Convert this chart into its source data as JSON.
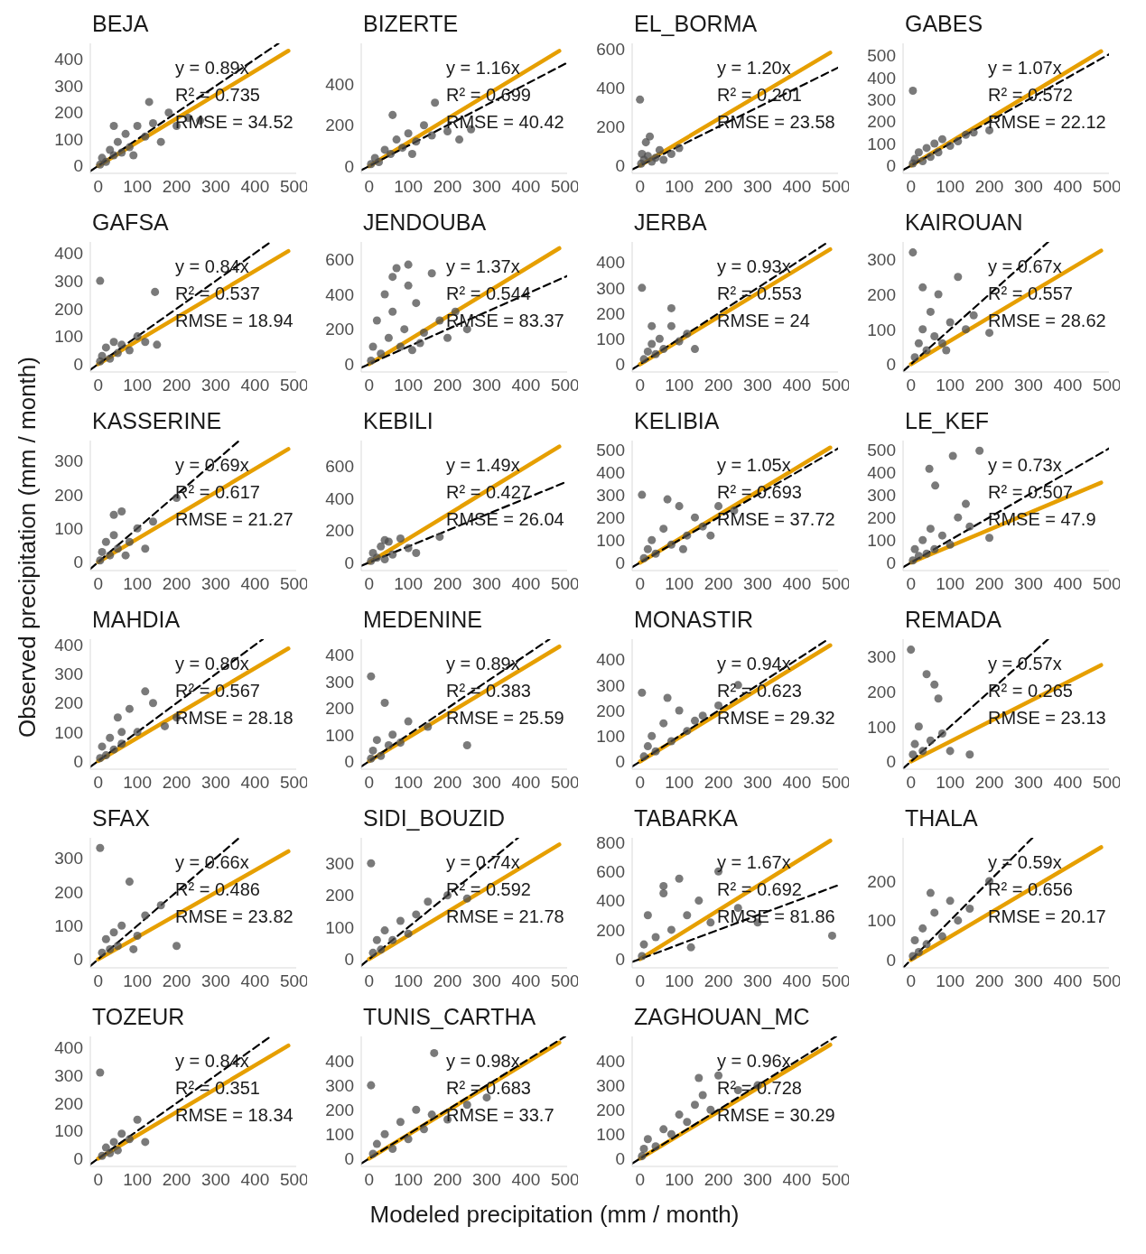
{
  "chart_data": [
    {
      "type": "scatter",
      "title": "BEJA",
      "xlim": [
        -20,
        505
      ],
      "ylim": [
        -28,
        460
      ],
      "xticks": [
        0,
        100,
        200,
        300,
        400,
        500
      ],
      "yticks": [
        0,
        100,
        200,
        300,
        400
      ],
      "annotations": [
        "y = 0.89x",
        "R² = 0.735",
        "RMSE = 34.52"
      ],
      "series": [
        {
          "type": "scatter",
          "marker": "circle",
          "color": "#4d4d4d",
          "x": [
            5,
            10,
            20,
            30,
            40,
            50,
            60,
            70,
            80,
            100,
            120,
            140,
            160,
            180,
            200,
            230,
            260,
            40,
            90,
            130
          ],
          "values": [
            5,
            30,
            15,
            60,
            40,
            90,
            50,
            120,
            70,
            150,
            110,
            160,
            90,
            200,
            150,
            180,
            170,
            150,
            40,
            240
          ]
        },
        {
          "type": "line",
          "color": "#e69f00",
          "x": [
            0,
            485
          ],
          "values": [
            0,
            432
          ]
        },
        {
          "type": "line",
          "line_style": "dashed",
          "color": "#000000",
          "x": [
            -20,
            460
          ],
          "values": [
            -20,
            460
          ]
        }
      ]
    },
    {
      "type": "scatter",
      "title": "BIZERTE",
      "xlim": [
        -20,
        505
      ],
      "ylim": [
        -35,
        600
      ],
      "xticks": [
        0,
        100,
        200,
        300,
        400,
        500
      ],
      "yticks": [
        0,
        200,
        400
      ],
      "annotations": [
        "y = 1.16x",
        "R² = 0.699",
        "RMSE = 40.42"
      ],
      "series": [
        {
          "type": "scatter",
          "marker": "circle",
          "color": "#4d4d4d",
          "x": [
            5,
            15,
            25,
            40,
            55,
            70,
            85,
            100,
            120,
            140,
            160,
            168,
            200,
            230,
            260,
            60,
            110
          ],
          "values": [
            10,
            40,
            20,
            80,
            60,
            130,
            90,
            160,
            120,
            200,
            150,
            310,
            170,
            130,
            180,
            250,
            60
          ]
        },
        {
          "type": "line",
          "color": "#e69f00",
          "x": [
            0,
            485
          ],
          "values": [
            0,
            563
          ]
        },
        {
          "type": "line",
          "line_style": "dashed",
          "color": "#000000",
          "x": [
            -20,
            505
          ],
          "values": [
            -20,
            505
          ]
        }
      ]
    },
    {
      "type": "scatter",
      "title": "EL_BORMA",
      "xlim": [
        -20,
        505
      ],
      "ylim": [
        -40,
        630
      ],
      "xticks": [
        0,
        100,
        200,
        300,
        400,
        500
      ],
      "yticks": [
        0,
        200,
        400,
        600
      ],
      "annotations": [
        "y = 1.20x",
        "R² = 0.201",
        "RMSE = 23.58"
      ],
      "series": [
        {
          "type": "scatter",
          "marker": "circle",
          "color": "#4d4d4d",
          "x": [
            0,
            3,
            5,
            10,
            15,
            20,
            25,
            30,
            40,
            50,
            60,
            80,
            100
          ],
          "values": [
            340,
            10,
            60,
            30,
            120,
            50,
            150,
            20,
            40,
            80,
            30,
            60,
            90
          ]
        },
        {
          "type": "line",
          "color": "#e69f00",
          "x": [
            0,
            485
          ],
          "values": [
            0,
            582
          ]
        },
        {
          "type": "line",
          "line_style": "dashed",
          "color": "#000000",
          "x": [
            -20,
            505
          ],
          "values": [
            -20,
            505
          ]
        }
      ]
    },
    {
      "type": "scatter",
      "title": "GABES",
      "xlim": [
        -20,
        505
      ],
      "ylim": [
        -35,
        555
      ],
      "xticks": [
        0,
        100,
        200,
        300,
        400,
        500
      ],
      "yticks": [
        0,
        100,
        200,
        300,
        400,
        500
      ],
      "annotations": [
        "y = 1.07x",
        "R² = 0.572",
        "RMSE = 22.12"
      ],
      "series": [
        {
          "type": "scatter",
          "marker": "circle",
          "color": "#4d4d4d",
          "x": [
            5,
            5,
            10,
            20,
            30,
            40,
            50,
            60,
            70,
            80,
            100,
            120,
            140,
            160,
            200
          ],
          "values": [
            340,
            10,
            30,
            60,
            20,
            80,
            40,
            100,
            60,
            120,
            90,
            110,
            140,
            150,
            160
          ]
        },
        {
          "type": "line",
          "color": "#e69f00",
          "x": [
            0,
            485
          ],
          "values": [
            0,
            519
          ]
        },
        {
          "type": "line",
          "line_style": "dashed",
          "color": "#000000",
          "x": [
            -20,
            505
          ],
          "values": [
            -20,
            505
          ]
        }
      ]
    },
    {
      "type": "scatter",
      "title": "GAFSA",
      "xlim": [
        -20,
        505
      ],
      "ylim": [
        -28,
        440
      ],
      "xticks": [
        0,
        100,
        200,
        300,
        400,
        500
      ],
      "yticks": [
        0,
        100,
        200,
        300,
        400
      ],
      "annotations": [
        "y = 0.84x",
        "R² = 0.537",
        "RMSE = 18.94"
      ],
      "series": [
        {
          "type": "scatter",
          "marker": "circle",
          "color": "#4d4d4d",
          "x": [
            5,
            5,
            10,
            20,
            30,
            40,
            50,
            60,
            80,
            100,
            120,
            150,
            145
          ],
          "values": [
            300,
            10,
            30,
            60,
            20,
            80,
            40,
            70,
            50,
            100,
            80,
            70,
            260
          ]
        },
        {
          "type": "line",
          "color": "#e69f00",
          "x": [
            0,
            485
          ],
          "values": [
            0,
            407
          ]
        },
        {
          "type": "line",
          "line_style": "dashed",
          "color": "#000000",
          "x": [
            -20,
            440
          ],
          "values": [
            -20,
            440
          ]
        }
      ]
    },
    {
      "type": "scatter",
      "title": "JENDOUBA",
      "xlim": [
        -20,
        505
      ],
      "ylim": [
        -45,
        700
      ],
      "xticks": [
        0,
        100,
        200,
        300,
        400,
        500
      ],
      "yticks": [
        0,
        200,
        400,
        600
      ],
      "annotations": [
        "y = 1.37x",
        "R² = 0.544",
        "RMSE = 83.37"
      ],
      "series": [
        {
          "type": "scatter",
          "marker": "circle",
          "color": "#4d4d4d",
          "x": [
            5,
            10,
            20,
            30,
            40,
            50,
            60,
            70,
            80,
            90,
            100,
            110,
            120,
            140,
            160,
            180,
            200,
            220,
            250,
            60,
            100,
            130
          ],
          "values": [
            20,
            100,
            250,
            60,
            400,
            150,
            300,
            550,
            100,
            200,
            450,
            80,
            350,
            180,
            520,
            250,
            150,
            300,
            200,
            500,
            570,
            120
          ]
        },
        {
          "type": "line",
          "color": "#e69f00",
          "x": [
            0,
            485
          ],
          "values": [
            0,
            664
          ]
        },
        {
          "type": "line",
          "line_style": "dashed",
          "color": "#000000",
          "x": [
            -20,
            505
          ],
          "values": [
            -20,
            505
          ]
        }
      ]
    },
    {
      "type": "scatter",
      "title": "JERBA",
      "xlim": [
        -20,
        505
      ],
      "ylim": [
        -30,
        480
      ],
      "xticks": [
        0,
        100,
        200,
        300,
        400,
        500
      ],
      "yticks": [
        0,
        100,
        200,
        300,
        400
      ],
      "annotations": [
        "y = 0.93x",
        "R² = 0.553",
        "RMSE = 24"
      ],
      "series": [
        {
          "type": "scatter",
          "marker": "circle",
          "color": "#4d4d4d",
          "x": [
            5,
            10,
            20,
            30,
            40,
            50,
            60,
            80,
            100,
            120,
            140,
            80,
            30
          ],
          "values": [
            300,
            20,
            50,
            80,
            40,
            100,
            60,
            150,
            90,
            120,
            60,
            220,
            150
          ]
        },
        {
          "type": "line",
          "color": "#e69f00",
          "x": [
            0,
            485
          ],
          "values": [
            0,
            451
          ]
        },
        {
          "type": "line",
          "line_style": "dashed",
          "color": "#000000",
          "x": [
            -20,
            480
          ],
          "values": [
            -20,
            480
          ]
        }
      ]
    },
    {
      "type": "scatter",
      "title": "KAIROUAN",
      "xlim": [
        -20,
        505
      ],
      "ylim": [
        -22,
        350
      ],
      "xticks": [
        0,
        100,
        200,
        300,
        400,
        500
      ],
      "yticks": [
        0,
        100,
        200,
        300
      ],
      "annotations": [
        "y = 0.67x",
        "R² = 0.557",
        "RMSE = 28.62"
      ],
      "series": [
        {
          "type": "scatter",
          "marker": "circle",
          "color": "#4d4d4d",
          "x": [
            5,
            10,
            20,
            30,
            40,
            50,
            60,
            70,
            80,
            100,
            120,
            140,
            160,
            200,
            30,
            90
          ],
          "values": [
            320,
            20,
            60,
            100,
            40,
            150,
            80,
            200,
            60,
            120,
            250,
            100,
            140,
            90,
            220,
            40
          ]
        },
        {
          "type": "line",
          "color": "#e69f00",
          "x": [
            0,
            485
          ],
          "values": [
            0,
            325
          ]
        },
        {
          "type": "line",
          "line_style": "dashed",
          "color": "#000000",
          "x": [
            -20,
            350
          ],
          "values": [
            -20,
            350
          ]
        }
      ]
    },
    {
      "type": "scatter",
      "title": "KASSERINE",
      "ylabel": "Observed precipitation (mm / month)",
      "xlim": [
        -20,
        505
      ],
      "ylim": [
        -25,
        360
      ],
      "xticks": [
        0,
        100,
        200,
        300,
        400,
        500
      ],
      "yticks": [
        0,
        100,
        200,
        300
      ],
      "annotations": [
        "y = 0.69x",
        "R² = 0.617",
        "RMSE = 21.27"
      ],
      "series": [
        {
          "type": "scatter",
          "marker": "circle",
          "color": "#4d4d4d",
          "x": [
            5,
            10,
            20,
            30,
            40,
            50,
            60,
            80,
            100,
            120,
            140,
            200,
            40,
            70
          ],
          "values": [
            5,
            30,
            60,
            20,
            80,
            40,
            150,
            60,
            100,
            40,
            120,
            190,
            140,
            20
          ]
        },
        {
          "type": "line",
          "color": "#e69f00",
          "x": [
            0,
            485
          ],
          "values": [
            0,
            335
          ]
        },
        {
          "type": "line",
          "line_style": "dashed",
          "color": "#000000",
          "x": [
            -20,
            360
          ],
          "values": [
            -20,
            360
          ]
        }
      ]
    },
    {
      "type": "scatter",
      "title": "KEBILI",
      "xlim": [
        -20,
        505
      ],
      "ylim": [
        -50,
        760
      ],
      "xticks": [
        0,
        100,
        200,
        300,
        400,
        500
      ],
      "yticks": [
        0,
        200,
        400,
        600
      ],
      "annotations": [
        "y = 1.49x",
        "R² = 0.427",
        "RMSE = 26.04"
      ],
      "series": [
        {
          "type": "scatter",
          "marker": "circle",
          "color": "#4d4d4d",
          "x": [
            5,
            10,
            20,
            30,
            40,
            50,
            60,
            80,
            100,
            120,
            180,
            40
          ],
          "values": [
            10,
            60,
            30,
            100,
            20,
            130,
            50,
            150,
            90,
            60,
            160,
            140
          ]
        },
        {
          "type": "line",
          "color": "#e69f00",
          "x": [
            0,
            485
          ],
          "values": [
            0,
            723
          ]
        },
        {
          "type": "line",
          "line_style": "dashed",
          "color": "#000000",
          "x": [
            -20,
            505
          ],
          "values": [
            -20,
            505
          ]
        }
      ]
    },
    {
      "type": "scatter",
      "title": "KELIBIA",
      "xlim": [
        -20,
        505
      ],
      "ylim": [
        -35,
        540
      ],
      "xticks": [
        0,
        100,
        200,
        300,
        400,
        500
      ],
      "yticks": [
        0,
        100,
        200,
        300,
        400,
        500
      ],
      "annotations": [
        "y = 1.05x",
        "R² = 0.693",
        "RMSE = 37.72"
      ],
      "series": [
        {
          "type": "scatter",
          "marker": "circle",
          "color": "#4d4d4d",
          "x": [
            5,
            10,
            20,
            30,
            40,
            60,
            80,
            100,
            120,
            140,
            160,
            180,
            200,
            240,
            70,
            110
          ],
          "values": [
            300,
            20,
            60,
            100,
            40,
            150,
            80,
            250,
            120,
            200,
            160,
            120,
            250,
            230,
            280,
            60
          ]
        },
        {
          "type": "line",
          "color": "#e69f00",
          "x": [
            0,
            485
          ],
          "values": [
            0,
            509
          ]
        },
        {
          "type": "line",
          "line_style": "dashed",
          "color": "#000000",
          "x": [
            -20,
            505
          ],
          "values": [
            -20,
            505
          ]
        }
      ]
    },
    {
      "type": "scatter",
      "title": "LE_KEF",
      "xlim": [
        -20,
        505
      ],
      "ylim": [
        -35,
        540
      ],
      "xticks": [
        0,
        100,
        200,
        300,
        400,
        500
      ],
      "yticks": [
        0,
        100,
        200,
        300,
        400,
        500
      ],
      "annotations": [
        "y = 0.73x",
        "R² = 0.507",
        "RMSE = 47.9"
      ],
      "series": [
        {
          "type": "scatter",
          "marker": "circle",
          "color": "#4d4d4d",
          "x": [
            5,
            10,
            20,
            30,
            40,
            50,
            60,
            80,
            100,
            120,
            150,
            200,
            47,
            107,
            175,
            62,
            140
          ],
          "values": [
            10,
            60,
            30,
            100,
            40,
            150,
            60,
            120,
            80,
            200,
            160,
            110,
            415,
            472,
            495,
            341,
            260
          ]
        },
        {
          "type": "line",
          "color": "#e69f00",
          "x": [
            0,
            485
          ],
          "values": [
            0,
            354
          ]
        },
        {
          "type": "line",
          "line_style": "dashed",
          "color": "#000000",
          "x": [
            -20,
            505
          ],
          "values": [
            -20,
            505
          ]
        }
      ]
    },
    {
      "type": "scatter",
      "title": "MAHDIA",
      "xlim": [
        -20,
        505
      ],
      "ylim": [
        -28,
        420
      ],
      "xticks": [
        0,
        100,
        200,
        300,
        400,
        500
      ],
      "yticks": [
        0,
        100,
        200,
        300,
        400
      ],
      "annotations": [
        "y = 0.80x",
        "R² = 0.567",
        "RMSE = 28.18"
      ],
      "series": [
        {
          "type": "scatter",
          "marker": "circle",
          "color": "#4d4d4d",
          "x": [
            5,
            10,
            20,
            30,
            40,
            50,
            60,
            80,
            100,
            120,
            140,
            170,
            200,
            60
          ],
          "values": [
            10,
            50,
            20,
            80,
            40,
            150,
            60,
            180,
            100,
            240,
            200,
            120,
            150,
            100
          ]
        },
        {
          "type": "line",
          "color": "#e69f00",
          "x": [
            0,
            485
          ],
          "values": [
            0,
            388
          ]
        },
        {
          "type": "line",
          "line_style": "dashed",
          "color": "#000000",
          "x": [
            -20,
            420
          ],
          "values": [
            -20,
            420
          ]
        }
      ]
    },
    {
      "type": "scatter",
      "title": "MEDENINE",
      "xlim": [
        -20,
        505
      ],
      "ylim": [
        -30,
        460
      ],
      "xticks": [
        0,
        100,
        200,
        300,
        400,
        500
      ],
      "yticks": [
        0,
        100,
        200,
        300,
        400
      ],
      "annotations": [
        "y = 0.89x",
        "R² = 0.383",
        "RMSE = 25.59"
      ],
      "series": [
        {
          "type": "scatter",
          "marker": "circle",
          "color": "#4d4d4d",
          "x": [
            5,
            5,
            10,
            20,
            30,
            40,
            50,
            60,
            80,
            100,
            150,
            250
          ],
          "values": [
            320,
            10,
            40,
            80,
            20,
            220,
            60,
            100,
            70,
            150,
            130,
            60
          ]
        },
        {
          "type": "line",
          "color": "#e69f00",
          "x": [
            0,
            485
          ],
          "values": [
            0,
            432
          ]
        },
        {
          "type": "line",
          "line_style": "dashed",
          "color": "#000000",
          "x": [
            -20,
            460
          ],
          "values": [
            -20,
            460
          ]
        }
      ]
    },
    {
      "type": "scatter",
      "title": "MONASTIR",
      "xlim": [
        -20,
        505
      ],
      "ylim": [
        -30,
        480
      ],
      "xticks": [
        0,
        100,
        200,
        300,
        400,
        500
      ],
      "yticks": [
        0,
        100,
        200,
        300,
        400
      ],
      "annotations": [
        "y = 0.94x",
        "R² = 0.623",
        "RMSE = 29.32"
      ],
      "series": [
        {
          "type": "scatter",
          "marker": "circle",
          "color": "#4d4d4d",
          "x": [
            5,
            10,
            20,
            30,
            40,
            60,
            80,
            100,
            120,
            140,
            160,
            200,
            250,
            70
          ],
          "values": [
            270,
            20,
            60,
            100,
            40,
            150,
            80,
            200,
            120,
            160,
            180,
            220,
            300,
            250
          ]
        },
        {
          "type": "line",
          "color": "#e69f00",
          "x": [
            0,
            485
          ],
          "values": [
            0,
            456
          ]
        },
        {
          "type": "line",
          "line_style": "dashed",
          "color": "#000000",
          "x": [
            -20,
            480
          ],
          "values": [
            -20,
            480
          ]
        }
      ]
    },
    {
      "type": "scatter",
      "title": "REMADA",
      "xlim": [
        -20,
        505
      ],
      "ylim": [
        -22,
        350
      ],
      "xticks": [
        0,
        100,
        200,
        300,
        400,
        500
      ],
      "yticks": [
        0,
        100,
        200,
        300
      ],
      "annotations": [
        "y = 0.57x",
        "R² = 0.265",
        "RMSE = 23.13"
      ],
      "series": [
        {
          "type": "scatter",
          "marker": "circle",
          "color": "#4d4d4d",
          "x": [
            0,
            5,
            10,
            20,
            30,
            40,
            50,
            60,
            70,
            80,
            100,
            150
          ],
          "values": [
            320,
            20,
            50,
            100,
            30,
            250,
            60,
            220,
            180,
            80,
            30,
            20
          ]
        },
        {
          "type": "line",
          "color": "#e69f00",
          "x": [
            0,
            485
          ],
          "values": [
            0,
            276
          ]
        },
        {
          "type": "line",
          "line_style": "dashed",
          "color": "#000000",
          "x": [
            -20,
            350
          ],
          "values": [
            -20,
            350
          ]
        }
      ]
    },
    {
      "type": "scatter",
      "title": "SFAX",
      "xlim": [
        -20,
        505
      ],
      "ylim": [
        -25,
        360
      ],
      "xticks": [
        0,
        100,
        200,
        300,
        400,
        500
      ],
      "yticks": [
        0,
        100,
        200,
        300
      ],
      "annotations": [
        "y = 0.66x",
        "R² = 0.486",
        "RMSE = 23.82"
      ],
      "series": [
        {
          "type": "scatter",
          "marker": "circle",
          "color": "#4d4d4d",
          "x": [
            5,
            10,
            20,
            30,
            40,
            50,
            60,
            80,
            100,
            120,
            160,
            200,
            90
          ],
          "values": [
            330,
            20,
            60,
            30,
            80,
            40,
            100,
            230,
            70,
            130,
            160,
            40,
            30
          ]
        },
        {
          "type": "line",
          "color": "#e69f00",
          "x": [
            0,
            485
          ],
          "values": [
            0,
            320
          ]
        },
        {
          "type": "line",
          "line_style": "dashed",
          "color": "#000000",
          "x": [
            -20,
            360
          ],
          "values": [
            -20,
            360
          ]
        }
      ]
    },
    {
      "type": "scatter",
      "title": "SIDI_BOUZID",
      "xlim": [
        -20,
        505
      ],
      "ylim": [
        -27,
        380
      ],
      "xticks": [
        0,
        100,
        200,
        300,
        400,
        500
      ],
      "yticks": [
        0,
        100,
        200,
        300
      ],
      "annotations": [
        "y = 0.74x",
        "R² = 0.592",
        "RMSE = 21.78"
      ],
      "series": [
        {
          "type": "scatter",
          "marker": "circle",
          "color": "#4d4d4d",
          "x": [
            5,
            10,
            20,
            30,
            40,
            60,
            80,
            100,
            120,
            150,
            200,
            250
          ],
          "values": [
            300,
            20,
            60,
            30,
            90,
            60,
            120,
            80,
            140,
            180,
            200,
            190
          ]
        },
        {
          "type": "line",
          "color": "#e69f00",
          "x": [
            0,
            485
          ],
          "values": [
            0,
            359
          ]
        },
        {
          "type": "line",
          "line_style": "dashed",
          "color": "#000000",
          "x": [
            -20,
            380
          ],
          "values": [
            -20,
            380
          ]
        }
      ]
    },
    {
      "type": "scatter",
      "title": "TABARKA",
      "xlim": [
        -20,
        505
      ],
      "ylim": [
        -60,
        830
      ],
      "xticks": [
        0,
        100,
        200,
        300,
        400,
        500
      ],
      "yticks": [
        0,
        200,
        400,
        600,
        800
      ],
      "annotations": [
        "y = 1.67x",
        "R² = 0.692",
        "RMSE = 81.86"
      ],
      "series": [
        {
          "type": "scatter",
          "marker": "circle",
          "color": "#4d4d4d",
          "x": [
            5,
            10,
            20,
            40,
            60,
            80,
            100,
            120,
            150,
            180,
            200,
            250,
            300,
            490,
            60,
            130
          ],
          "values": [
            20,
            100,
            300,
            150,
            450,
            200,
            550,
            300,
            400,
            250,
            600,
            350,
            250,
            160,
            500,
            80
          ]
        },
        {
          "type": "line",
          "color": "#e69f00",
          "x": [
            0,
            485
          ],
          "values": [
            0,
            810
          ]
        },
        {
          "type": "line",
          "line_style": "dashed",
          "color": "#000000",
          "x": [
            -20,
            505
          ],
          "values": [
            -20,
            505
          ]
        }
      ]
    },
    {
      "type": "scatter",
      "title": "THALA",
      "xlim": [
        -20,
        505
      ],
      "ylim": [
        -20,
        310
      ],
      "xticks": [
        0,
        100,
        200,
        300,
        400,
        500
      ],
      "yticks": [
        0,
        100,
        200
      ],
      "annotations": [
        "y = 0.59x",
        "R² = 0.656",
        "RMSE = 20.17"
      ],
      "series": [
        {
          "type": "scatter",
          "marker": "circle",
          "color": "#4d4d4d",
          "x": [
            5,
            10,
            20,
            30,
            40,
            60,
            80,
            100,
            120,
            150,
            200,
            50
          ],
          "values": [
            10,
            50,
            20,
            80,
            40,
            120,
            60,
            150,
            100,
            130,
            200,
            170
          ]
        },
        {
          "type": "line",
          "color": "#e69f00",
          "x": [
            0,
            485
          ],
          "values": [
            0,
            286
          ]
        },
        {
          "type": "line",
          "line_style": "dashed",
          "color": "#000000",
          "x": [
            -20,
            310
          ],
          "values": [
            -20,
            310
          ]
        }
      ]
    },
    {
      "type": "scatter",
      "title": "TOZEUR",
      "xlim": [
        -20,
        505
      ],
      "ylim": [
        -28,
        440
      ],
      "xticks": [
        0,
        100,
        200,
        300,
        400,
        500
      ],
      "yticks": [
        0,
        100,
        200,
        300,
        400
      ],
      "annotations": [
        "y = 0.84x",
        "R² = 0.351",
        "RMSE = 18.34"
      ],
      "series": [
        {
          "type": "scatter",
          "marker": "circle",
          "color": "#4d4d4d",
          "x": [
            5,
            10,
            20,
            30,
            40,
            50,
            60,
            80,
            100,
            120
          ],
          "values": [
            310,
            10,
            40,
            20,
            60,
            30,
            90,
            70,
            140,
            60
          ]
        },
        {
          "type": "line",
          "color": "#e69f00",
          "x": [
            0,
            485
          ],
          "values": [
            0,
            407
          ]
        },
        {
          "type": "line",
          "line_style": "dashed",
          "color": "#000000",
          "x": [
            -20,
            440
          ],
          "values": [
            -20,
            440
          ]
        }
      ]
    },
    {
      "type": "scatter",
      "title": "TUNIS_CARTHA",
      "xlabel": "Modeled precipitation (mm / month)",
      "xlim": [
        -20,
        505
      ],
      "ylim": [
        -32,
        500
      ],
      "xticks": [
        0,
        100,
        200,
        300,
        400,
        500
      ],
      "yticks": [
        0,
        100,
        200,
        300,
        400
      ],
      "annotations": [
        "y = 0.98x",
        "R² = 0.683",
        "RMSE = 33.7"
      ],
      "series": [
        {
          "type": "scatter",
          "marker": "circle",
          "color": "#4d4d4d",
          "x": [
            5,
            10,
            20,
            40,
            60,
            80,
            100,
            120,
            140,
            160,
            166,
            200,
            250,
            300
          ],
          "values": [
            300,
            20,
            60,
            100,
            40,
            150,
            80,
            200,
            120,
            180,
            432,
            160,
            220,
            250
          ]
        },
        {
          "type": "line",
          "color": "#e69f00",
          "x": [
            0,
            485
          ],
          "values": [
            0,
            475
          ]
        },
        {
          "type": "line",
          "line_style": "dashed",
          "color": "#000000",
          "x": [
            -20,
            500
          ],
          "values": [
            -20,
            500
          ]
        }
      ]
    },
    {
      "type": "scatter",
      "title": "ZAGHOUAN_MC",
      "xlim": [
        -20,
        505
      ],
      "ylim": [
        -32,
        500
      ],
      "xticks": [
        0,
        100,
        200,
        300,
        400,
        500
      ],
      "yticks": [
        0,
        100,
        200,
        300,
        400
      ],
      "annotations": [
        "y = 0.96x",
        "R² = 0.728",
        "RMSE = 30.29"
      ],
      "series": [
        {
          "type": "scatter",
          "marker": "circle",
          "color": "#4d4d4d",
          "x": [
            5,
            10,
            20,
            40,
            60,
            80,
            100,
            120,
            140,
            160,
            180,
            200,
            250,
            300,
            150
          ],
          "values": [
            10,
            40,
            80,
            50,
            120,
            100,
            180,
            150,
            220,
            260,
            200,
            340,
            280,
            300,
            330
          ]
        },
        {
          "type": "line",
          "color": "#e69f00",
          "x": [
            0,
            485
          ],
          "values": [
            0,
            466
          ]
        },
        {
          "type": "line",
          "line_style": "dashed",
          "color": "#000000",
          "x": [
            -20,
            500
          ],
          "values": [
            -20,
            500
          ]
        }
      ]
    }
  ]
}
